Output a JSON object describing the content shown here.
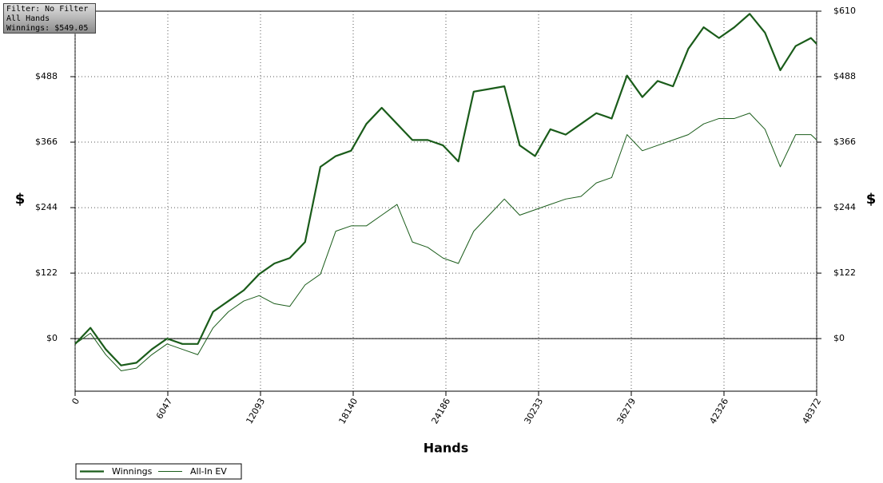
{
  "info_box": {
    "filter": "Filter: No Filter",
    "hands": "All Hands",
    "winnings": "Winnings: $549.05"
  },
  "chart_data": {
    "type": "line",
    "xlabel": "Hands",
    "ylabel": "$",
    "y2label": "$",
    "x": [
      0,
      1000,
      2000,
      3000,
      4000,
      5000,
      6000,
      7000,
      8000,
      9000,
      10000,
      11000,
      12000,
      13000,
      14000,
      15000,
      16000,
      17000,
      18000,
      19000,
      20000,
      21000,
      22000,
      23000,
      24000,
      25000,
      26000,
      27000,
      28000,
      29000,
      30000,
      31000,
      32000,
      33000,
      34000,
      35000,
      36000,
      37000,
      38000,
      39000,
      40000,
      41000,
      42000,
      43000,
      44000,
      45000,
      46000,
      47000,
      48000,
      48372
    ],
    "series": [
      {
        "name": "Winnings",
        "color": "#1a5c1a",
        "width": 2.2,
        "values": [
          -10,
          20,
          -20,
          -50,
          -45,
          -20,
          0,
          -10,
          -10,
          50,
          70,
          90,
          120,
          140,
          150,
          180,
          320,
          340,
          350,
          400,
          430,
          400,
          370,
          370,
          360,
          330,
          460,
          465,
          470,
          360,
          340,
          390,
          380,
          400,
          420,
          410,
          490,
          450,
          480,
          470,
          540,
          580,
          560,
          580,
          605,
          570,
          500,
          545,
          560,
          549.05
        ]
      },
      {
        "name": "All-In EV",
        "color": "#1a5c1a",
        "width": 1,
        "values": [
          -10,
          10,
          -30,
          -60,
          -55,
          -30,
          -10,
          -20,
          -30,
          20,
          50,
          70,
          80,
          65,
          60,
          100,
          120,
          200,
          210,
          210,
          230,
          250,
          180,
          170,
          150,
          140,
          200,
          230,
          260,
          230,
          240,
          250,
          260,
          265,
          290,
          300,
          380,
          350,
          360,
          370,
          380,
          400,
          410,
          410,
          420,
          390,
          320,
          380,
          380,
          370
        ]
      }
    ],
    "xlim": [
      0,
      48372
    ],
    "xticks": [
      0,
      6047,
      12093,
      18140,
      24186,
      30233,
      36279,
      42326,
      48372
    ],
    "ylim": [
      -98,
      610
    ],
    "yticks": [
      {
        "value": 0,
        "label": "$0"
      },
      {
        "value": 122,
        "label": "$122"
      },
      {
        "value": 244,
        "label": "$244"
      },
      {
        "value": 366,
        "label": "$366"
      },
      {
        "value": 488,
        "label": "$488"
      }
    ],
    "y2lim": [
      -98,
      610
    ],
    "y2ticks": [
      {
        "value": 0,
        "label": "$0"
      },
      {
        "value": 122,
        "label": "$122"
      },
      {
        "value": 244,
        "label": "$244"
      },
      {
        "value": 366,
        "label": "$366"
      },
      {
        "value": 488,
        "label": "$488"
      },
      {
        "value": 610,
        "label": "$610"
      }
    ],
    "grid": true
  }
}
